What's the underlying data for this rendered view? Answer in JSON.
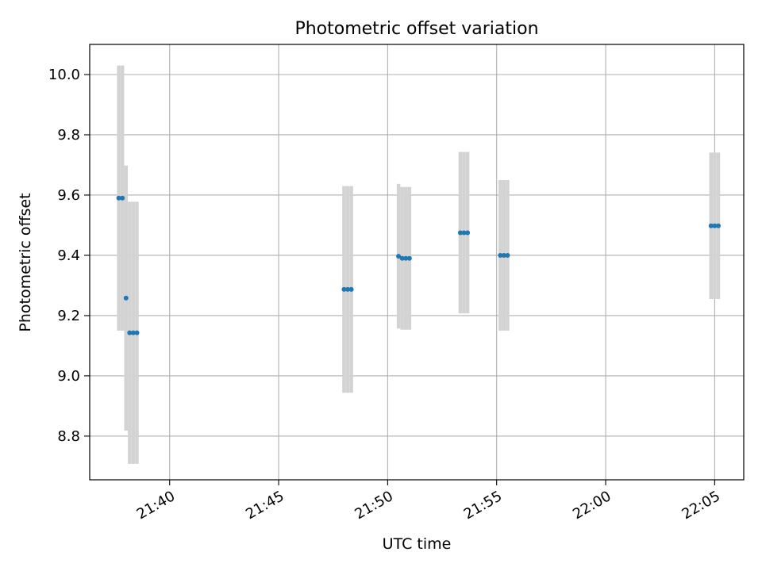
{
  "chart_data": {
    "type": "scatter",
    "title": "Photometric offset variation",
    "xlabel": "UTC time",
    "ylabel": "Photometric offset",
    "grid": true,
    "error_bars": true,
    "xlim": [
      "21:36:20",
      "22:06:20"
    ],
    "ylim": [
      8.655,
      10.1
    ],
    "x_ticks": [
      "21:40",
      "21:45",
      "21:50",
      "21:55",
      "22:00",
      "22:05"
    ],
    "y_ticks": [
      "8.8",
      "9.0",
      "9.2",
      "9.4",
      "9.6",
      "9.8",
      "10.0"
    ],
    "x_tick_values": [
      "21:40",
      "21:45",
      "21:50",
      "21:55",
      "22:00",
      "22:05"
    ],
    "y_tick_values": [
      8.8,
      9.0,
      9.2,
      9.4,
      9.6,
      9.8,
      10.0
    ],
    "series": [
      {
        "color": "#1f77b4",
        "errorbar_color": "#d3d3d3",
        "points": [
          {
            "x": "21:37:40",
            "y": 9.59,
            "yerr": 0.44
          },
          {
            "x": "21:37:50",
            "y": 9.59,
            "yerr": 0.44
          },
          {
            "x": "21:38:00",
            "y": 9.258,
            "yerr": 0.44
          },
          {
            "x": "21:38:10",
            "y": 9.143,
            "yerr": 0.435
          },
          {
            "x": "21:38:20",
            "y": 9.143,
            "yerr": 0.435
          },
          {
            "x": "21:38:30",
            "y": 9.143,
            "yerr": 0.435
          },
          {
            "x": "21:48:00",
            "y": 9.287,
            "yerr": 0.343
          },
          {
            "x": "21:48:10",
            "y": 9.287,
            "yerr": 0.343
          },
          {
            "x": "21:48:20",
            "y": 9.287,
            "yerr": 0.343
          },
          {
            "x": "21:50:30",
            "y": 9.397,
            "yerr": 0.24
          },
          {
            "x": "21:50:40",
            "y": 9.39,
            "yerr": 0.237
          },
          {
            "x": "21:50:50",
            "y": 9.39,
            "yerr": 0.237
          },
          {
            "x": "21:51:00",
            "y": 9.39,
            "yerr": 0.237
          },
          {
            "x": "21:53:20",
            "y": 9.475,
            "yerr": 0.268
          },
          {
            "x": "21:53:30",
            "y": 9.475,
            "yerr": 0.268
          },
          {
            "x": "21:53:40",
            "y": 9.475,
            "yerr": 0.268
          },
          {
            "x": "21:55:10",
            "y": 9.4,
            "yerr": 0.25
          },
          {
            "x": "21:55:20",
            "y": 9.4,
            "yerr": 0.25
          },
          {
            "x": "21:55:30",
            "y": 9.4,
            "yerr": 0.25
          },
          {
            "x": "22:04:50",
            "y": 9.498,
            "yerr": 0.243
          },
          {
            "x": "22:05:00",
            "y": 9.498,
            "yerr": 0.243
          },
          {
            "x": "22:05:10",
            "y": 9.498,
            "yerr": 0.243
          }
        ]
      }
    ]
  }
}
